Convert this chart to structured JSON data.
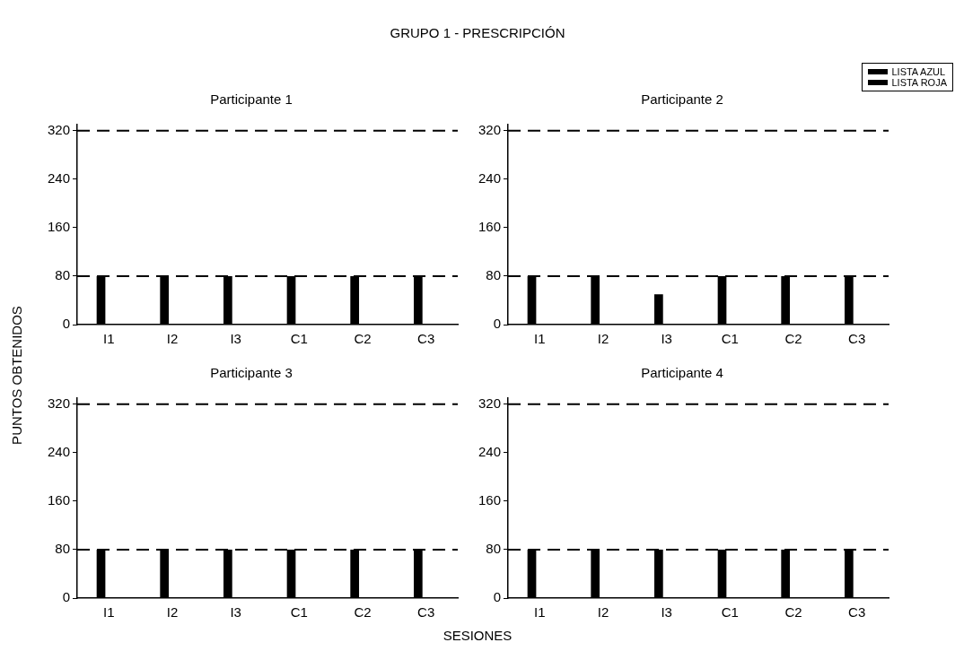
{
  "chart_data": [
    {
      "type": "bar",
      "title": "Participante 1",
      "annotations": [
        "GRUPO 1 - PRESCRIPCIÓN"
      ],
      "ylabel": "PUNTOS OBTENIDOS",
      "legend": "top right",
      "categories": [
        "I1",
        "I2",
        "I3",
        "C1",
        "C2",
        "C3"
      ],
      "series": [
        {
          "name": "LISTA AZUL",
          "color": "#000000",
          "values": [
            80,
            80,
            80,
            80,
            80,
            80
          ]
        },
        {
          "name": "LISTA ROJA",
          "color": "#000000",
          "values": [
            null,
            null,
            null,
            null,
            null,
            null
          ]
        }
      ],
      "ylim": [
        0,
        330
      ],
      "yticks": [
        0,
        80,
        160,
        240,
        320
      ],
      "grid": false,
      "ref_lines": [
        {
          "axis": "y",
          "value": 320,
          "line_style": "dashed",
          "color": "#000000"
        },
        {
          "axis": "y",
          "value": 80,
          "line_style": "dashed",
          "color": "#000000"
        }
      ]
    },
    {
      "type": "bar",
      "title": "Participante 2",
      "categories": [
        "I1",
        "I2",
        "I3",
        "C1",
        "C2",
        "C3"
      ],
      "series": [
        {
          "color": "#000000",
          "values": [
            80,
            80,
            50,
            80,
            80,
            80
          ]
        },
        {
          "color": "#000000",
          "values": [
            null,
            null,
            null,
            null,
            null,
            null
          ]
        }
      ],
      "ylim": [
        0,
        330
      ],
      "yticks": [
        0,
        80,
        160,
        240,
        320
      ],
      "grid": false,
      "ref_lines": [
        {
          "axis": "y",
          "value": 320,
          "line_style": "dashed",
          "color": "#000000"
        },
        {
          "axis": "y",
          "value": 80,
          "line_style": "dashed",
          "color": "#000000"
        }
      ]
    },
    {
      "type": "bar",
      "title": "Participante 3",
      "xlabel": "SESIONES",
      "categories": [
        "I1",
        "I2",
        "I3",
        "C1",
        "C2",
        "C3"
      ],
      "series": [
        {
          "color": "#000000",
          "values": [
            80,
            80,
            80,
            80,
            80,
            80
          ]
        },
        {
          "color": "#000000",
          "values": [
            null,
            null,
            null,
            null,
            null,
            null
          ]
        }
      ],
      "ylim": [
        0,
        330
      ],
      "yticks": [
        0,
        80,
        160,
        240,
        320
      ],
      "grid": false,
      "ref_lines": [
        {
          "axis": "y",
          "value": 320,
          "line_style": "dashed",
          "color": "#000000"
        },
        {
          "axis": "y",
          "value": 80,
          "line_style": "dashed",
          "color": "#000000"
        }
      ]
    },
    {
      "type": "bar",
      "title": "Participante 4",
      "categories": [
        "I1",
        "I2",
        "I3",
        "C1",
        "C2",
        "C3"
      ],
      "series": [
        {
          "color": "#000000",
          "values": [
            80,
            80,
            80,
            80,
            80,
            80
          ]
        },
        {
          "color": "#000000",
          "values": [
            null,
            null,
            null,
            null,
            null,
            null
          ]
        }
      ],
      "ylim": [
        0,
        330
      ],
      "yticks": [
        0,
        80,
        160,
        240,
        320
      ],
      "grid": false,
      "ref_lines": [
        {
          "axis": "y",
          "value": 320,
          "line_style": "dashed",
          "color": "#000000"
        },
        {
          "axis": "y",
          "value": 80,
          "line_style": "dashed",
          "color": "#000000"
        }
      ]
    }
  ]
}
